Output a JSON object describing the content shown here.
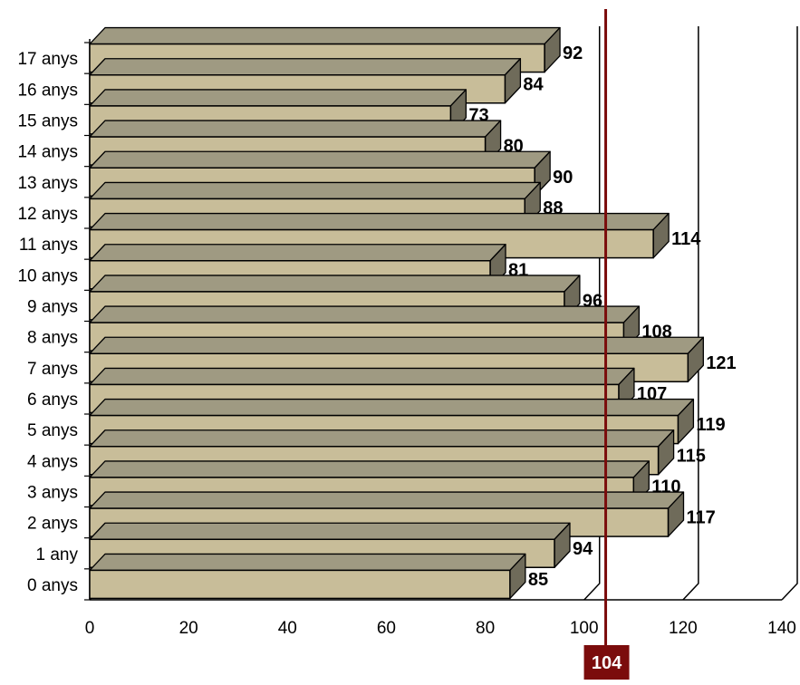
{
  "chart_data": {
    "type": "bar",
    "orientation": "horizontal",
    "three_d": true,
    "categories": [
      "0 anys",
      "1 any",
      "2 anys",
      "3 anys",
      "4 anys",
      "5 anys",
      "6 anys",
      "7 anys",
      "8 anys",
      "9 anys",
      "10 anys",
      "11 anys",
      "12 anys",
      "13 anys",
      "14 anys",
      "15 anys",
      "16 anys",
      "17 anys"
    ],
    "values": [
      85,
      94,
      117,
      110,
      115,
      119,
      107,
      121,
      108,
      96,
      81,
      114,
      88,
      90,
      80,
      73,
      84,
      92
    ],
    "data_labels": [
      "85",
      "94",
      "117",
      "110",
      "115",
      "119",
      "107",
      "121",
      "108",
      "96",
      "81",
      "114",
      "88",
      "90",
      "80",
      "73",
      "84",
      "92"
    ],
    "xlim": [
      0,
      140
    ],
    "x_ticks": [
      "0",
      "20",
      "40",
      "60",
      "80",
      "100",
      "120",
      "140"
    ],
    "gridlines_at": [
      100,
      120,
      140
    ],
    "reference_line": {
      "value": 104,
      "label": "104",
      "color": "#7b0c0c"
    },
    "colors": {
      "bar_front": "#c8bd99",
      "bar_top": "#9f9a82",
      "bar_side": "#6f6b5a",
      "outline": "#000000"
    }
  }
}
